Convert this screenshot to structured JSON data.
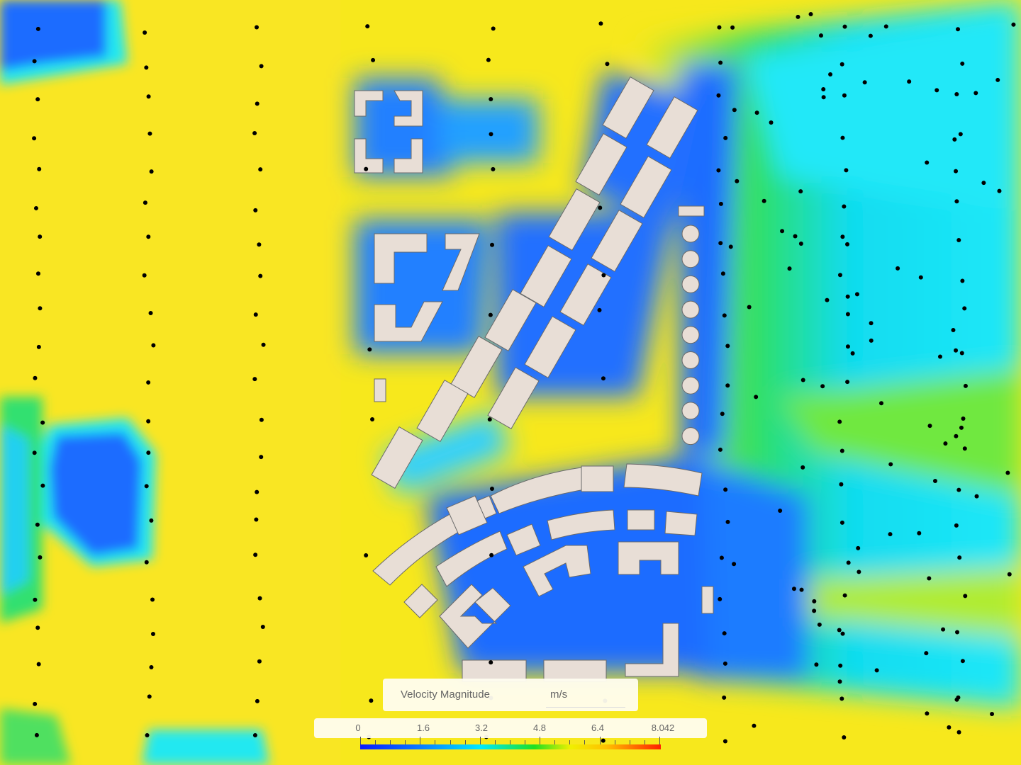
{
  "legend": {
    "title": "Velocity Magnitude",
    "unit": "m/s",
    "min": 0,
    "max": 8.042,
    "tick_labels": [
      "0",
      "1.6",
      "3.2",
      "4.8",
      "6.4",
      "8.042"
    ],
    "colormap": [
      "#0a1aff",
      "#0a7cff",
      "#00eaff",
      "#20e020",
      "#f0f000",
      "#ffc000",
      "#ff2000"
    ]
  },
  "colors": {
    "building": "#e8ded6",
    "low_velocity": "#1a6cff",
    "mid_velocity": "#00e0ff",
    "high_velocity": "#f7e81c"
  }
}
